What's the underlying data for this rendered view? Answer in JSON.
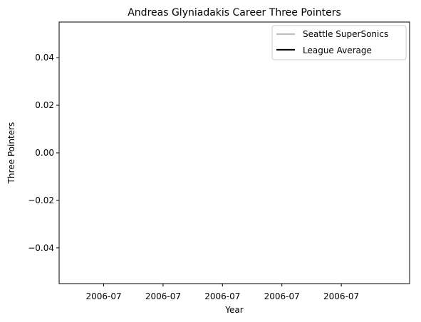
{
  "chart_data": {
    "type": "line",
    "title": "Andreas Glyniadakis Career Three Pointers",
    "xlabel": "Year",
    "ylabel": "Three Pointers",
    "x_tick_labels": [
      "2006-07",
      "2006-07",
      "2006-07",
      "2006-07",
      "2006-07"
    ],
    "y_ticks": [
      0.04,
      0.02,
      0.0,
      -0.02,
      -0.04
    ],
    "y_tick_labels": [
      "0.04",
      "0.02",
      "0.00",
      "−0.02",
      "−0.04"
    ],
    "ylim": [
      -0.055,
      0.055
    ],
    "grid": false,
    "legend_position": "top-right",
    "series": [
      {
        "name": "Seattle SuperSonics",
        "color": "#bfbfbf",
        "x": [],
        "y": []
      },
      {
        "name": "League Average",
        "color": "#000000",
        "x": [],
        "y": []
      }
    ]
  }
}
